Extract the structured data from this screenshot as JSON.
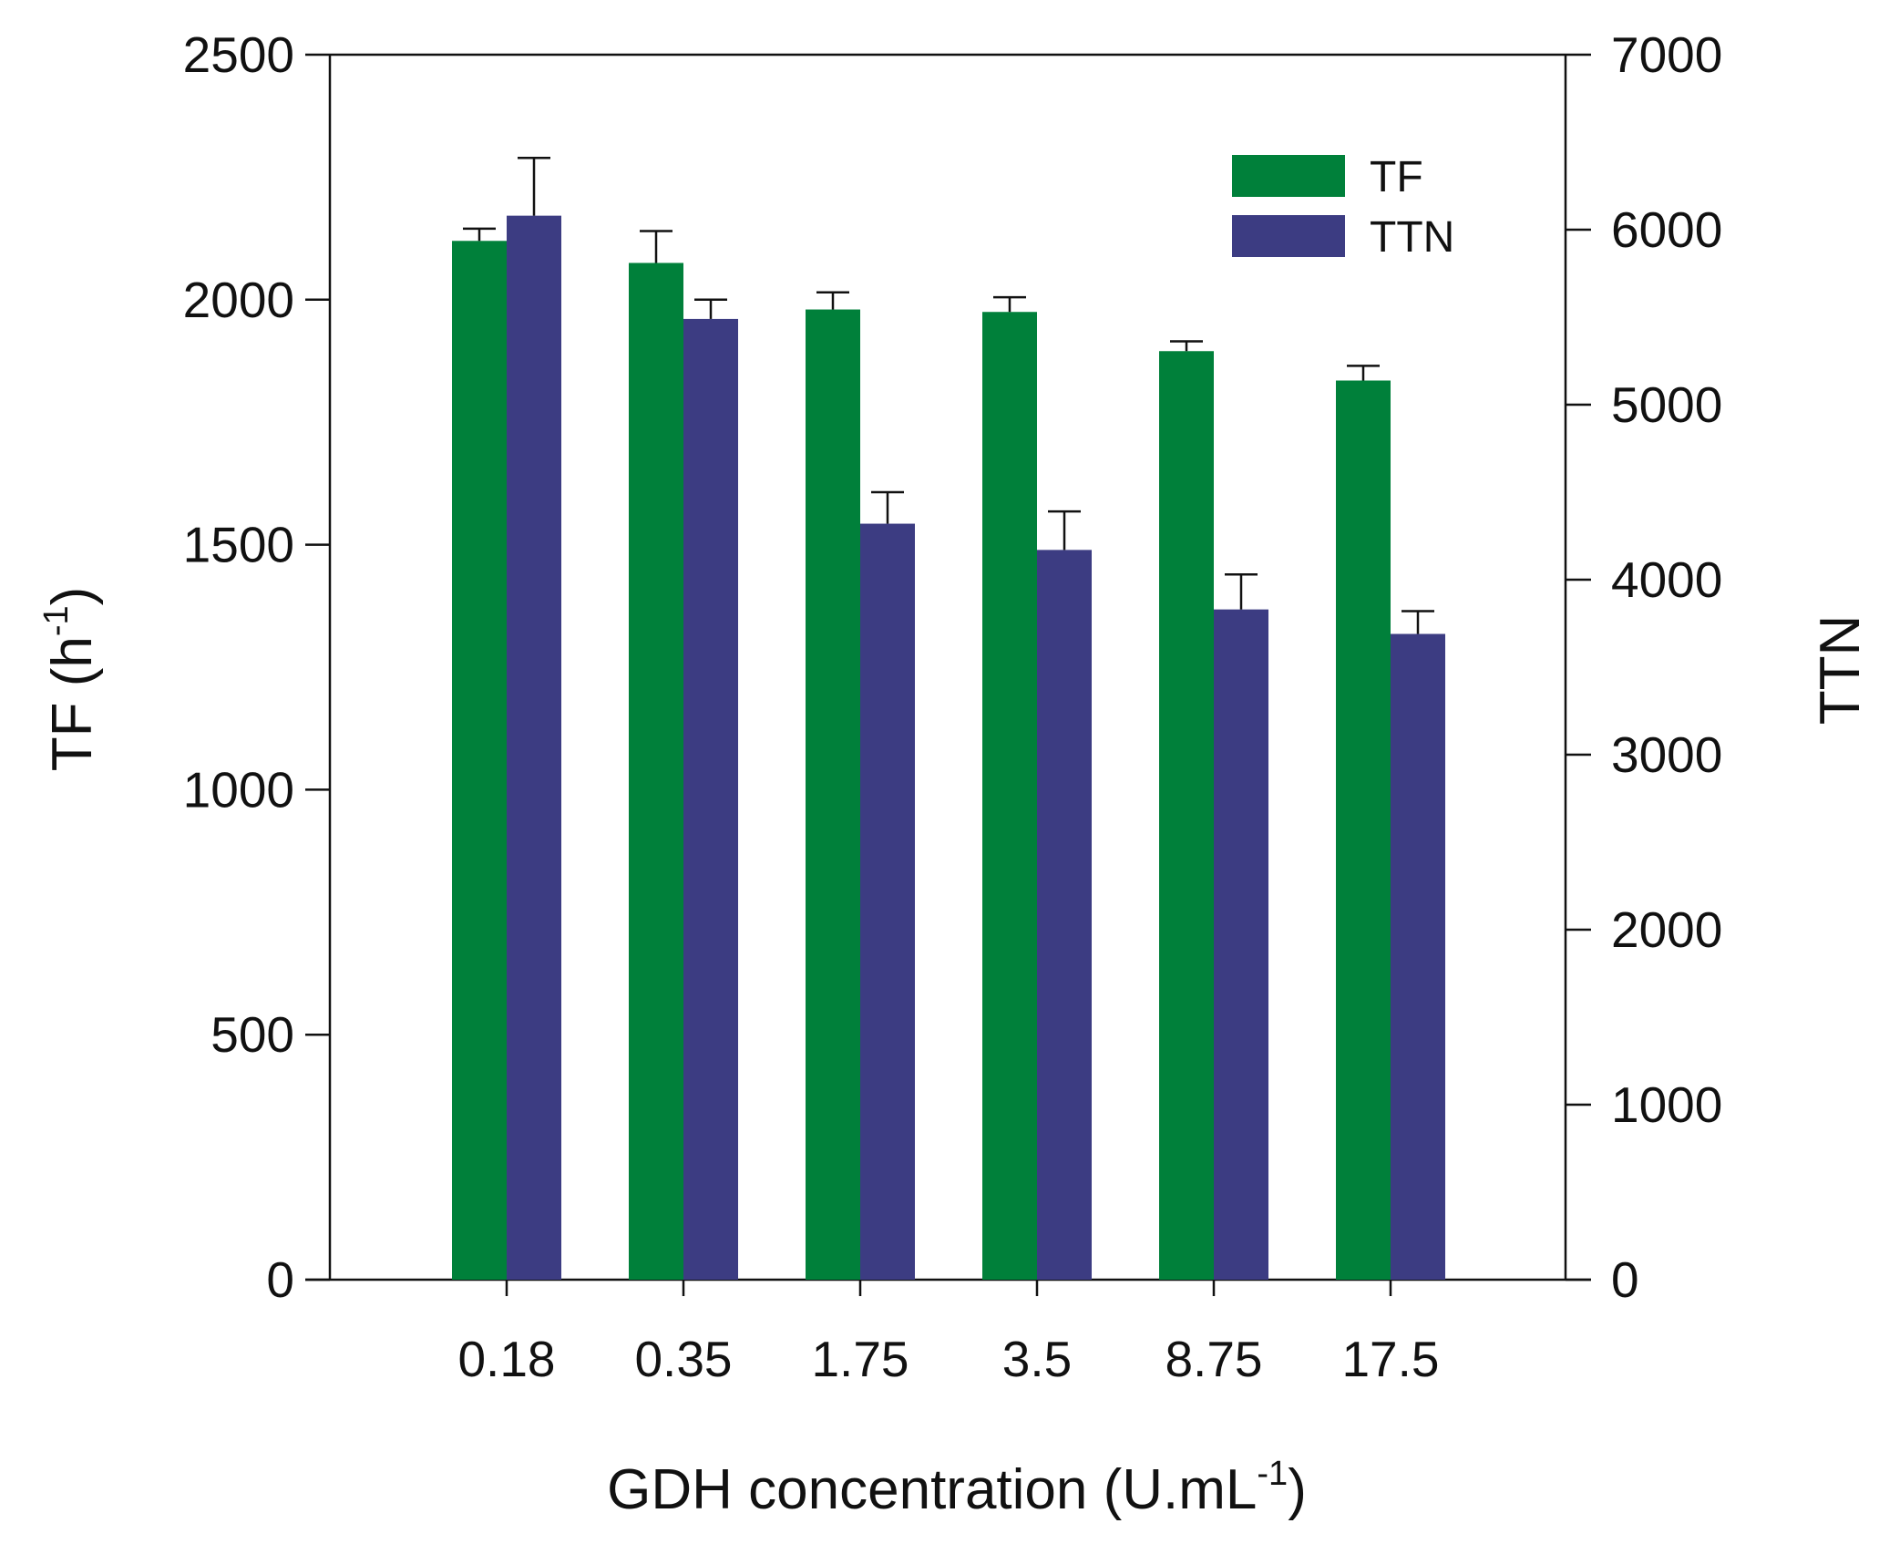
{
  "chart_data": {
    "type": "bar",
    "title": "",
    "xlabel": "GDH concentration (U.mL",
    "xlabel_sup": "-1",
    "xlabel_close": ")",
    "ylabel": "TF (h",
    "ylabel_sup": "-1",
    "ylabel_close": ")",
    "y2label": "TTN",
    "categories": [
      "0.18",
      "0.35",
      "1.75",
      "3.5",
      "8.75",
      "17.5"
    ],
    "ylim": [
      0,
      2500
    ],
    "y2lim": [
      0,
      7000
    ],
    "yticks": [
      "0",
      "500",
      "1000",
      "1500",
      "2000",
      "2500"
    ],
    "y2ticks": [
      "0",
      "1000",
      "2000",
      "3000",
      "4000",
      "5000",
      "6000",
      "7000"
    ],
    "legend_position": "top-right",
    "series": [
      {
        "name": "TF",
        "axis": "left",
        "color": "#00803a",
        "values": [
          2120,
          2075,
          1980,
          1975,
          1895,
          1835
        ],
        "errors": [
          25,
          65,
          35,
          30,
          20,
          30
        ]
      },
      {
        "name": "TTN",
        "axis": "right",
        "color": "#3c3c82",
        "values": [
          6080,
          5490,
          4320,
          4170,
          3830,
          3690
        ],
        "errors": [
          330,
          110,
          180,
          220,
          200,
          130
        ]
      }
    ]
  }
}
